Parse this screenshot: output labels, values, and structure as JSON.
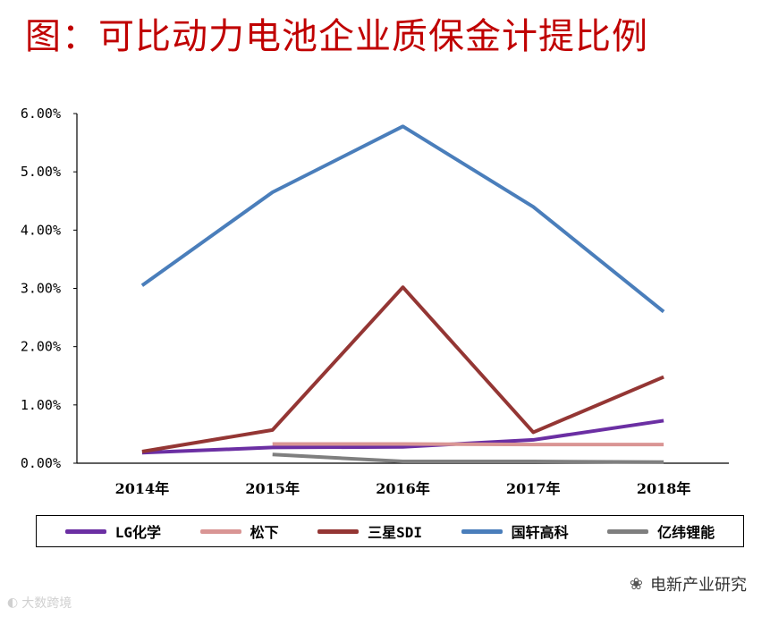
{
  "title": "图：可比动力电池企业质保金计提比例",
  "colors": {
    "lg": "#6b2fa3",
    "panasonic": "#d99594",
    "samsung": "#943634",
    "guoxuan": "#4a7ebb",
    "eve": "#7f7f7f"
  },
  "chart_data": {
    "type": "line",
    "title": "可比动力电池企业质保金计提比例",
    "categories": [
      "2014年",
      "2015年",
      "2016年",
      "2017年",
      "2018年"
    ],
    "ylim": [
      0,
      6
    ],
    "yticks": [
      0,
      1,
      2,
      3,
      4,
      5,
      6
    ],
    "ytick_labels": [
      "0.00%",
      "1.00%",
      "2.00%",
      "3.00%",
      "4.00%",
      "5.00%",
      "6.00%"
    ],
    "yunit": "%",
    "legend_position": "bottom",
    "series": [
      {
        "name": "LG化学",
        "color_key": "lg",
        "values": [
          0.18,
          0.27,
          0.28,
          0.4,
          0.73
        ]
      },
      {
        "name": "松下",
        "color_key": "panasonic",
        "values": [
          null,
          0.33,
          0.33,
          0.32,
          0.32
        ]
      },
      {
        "name": "三星SDI",
        "color_key": "samsung",
        "values": [
          0.2,
          0.57,
          3.02,
          0.53,
          1.48
        ]
      },
      {
        "name": "国轩高科",
        "color_key": "guoxuan",
        "values": [
          3.05,
          4.65,
          5.78,
          4.4,
          2.6
        ]
      },
      {
        "name": "亿纬锂能",
        "color_key": "eve",
        "values": [
          null,
          0.15,
          0.03,
          0.03,
          0.02
        ]
      }
    ]
  },
  "watermark_left": "大数跨境",
  "watermark_right": "电新产业研究",
  "watermark_left_icon": "weibo-icon",
  "watermark_right_icon": "wechat-icon"
}
